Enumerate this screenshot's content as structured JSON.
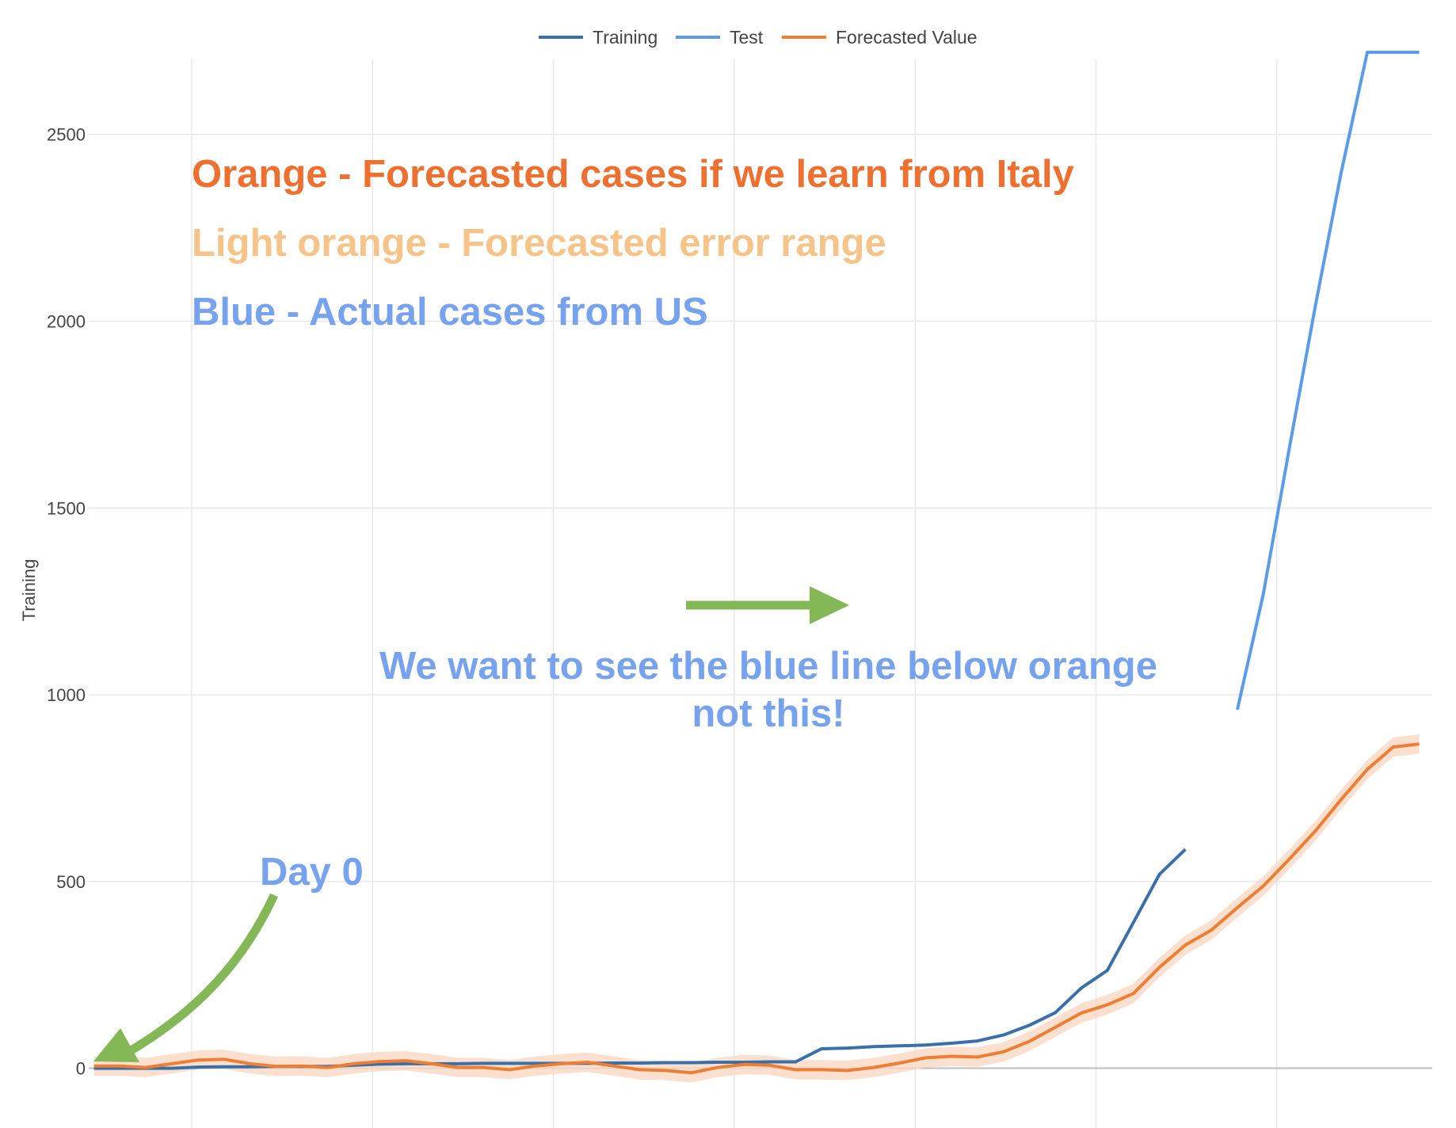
{
  "chart_data": {
    "type": "line",
    "title": "",
    "xlabel": "",
    "ylabel": "Training",
    "ylim": [
      -160,
      2860
    ],
    "yticks": [
      0,
      500,
      1000,
      1500,
      2000,
      2500
    ],
    "grid": true,
    "legend_position": "top-center",
    "legend": [
      "Training",
      "Test",
      "Forecasted Value"
    ],
    "x_index_range": [
      -0.2,
      51.5
    ],
    "series": [
      {
        "name": "Training",
        "color": "#3a6fa8",
        "x": [
          0,
          1,
          2,
          3,
          4,
          5,
          6,
          7,
          8,
          9,
          10,
          11,
          12,
          13,
          14,
          15,
          16,
          17,
          18,
          19,
          20,
          21,
          22,
          23,
          24,
          25,
          26,
          27,
          28,
          29,
          30,
          31,
          32,
          33,
          34,
          35,
          36,
          37,
          38,
          39,
          40,
          41,
          42,
          43,
          44,
          45,
          46,
          47,
          48,
          49,
          50,
          51
        ],
        "values": [
          0,
          0,
          0,
          0,
          3,
          4,
          4,
          5,
          5,
          5,
          8,
          11,
          12,
          12,
          12,
          13,
          13,
          13,
          13,
          13,
          14,
          14,
          15,
          15,
          16,
          16,
          17,
          17,
          52,
          54,
          58,
          60,
          62,
          67,
          73,
          89,
          115,
          149,
          215,
          262,
          390,
          519,
          586,
          null,
          null,
          null,
          null,
          null,
          null,
          null,
          null,
          null
        ]
      },
      {
        "name": "Test",
        "color": "#5b9be8",
        "x": [
          44,
          45,
          46,
          47,
          48,
          49,
          50,
          51
        ],
        "values": [
          960,
          1270,
          1660,
          2040,
          2400,
          2720,
          2720,
          2720
        ]
      },
      {
        "name": "Forecasted Value",
        "color": "#ee7e33",
        "band_color": "#fad8c3",
        "x": [
          0,
          1,
          2,
          3,
          4,
          5,
          6,
          7,
          8,
          9,
          10,
          11,
          12,
          13,
          14,
          15,
          16,
          17,
          18,
          19,
          20,
          21,
          22,
          23,
          24,
          25,
          26,
          27,
          28,
          29,
          30,
          31,
          32,
          33,
          34,
          35,
          36,
          37,
          38,
          39,
          40,
          41,
          42,
          43,
          44,
          45,
          46,
          47,
          48,
          49,
          50,
          51
        ],
        "values": [
          6,
          6,
          2,
          12,
          22,
          24,
          12,
          5,
          6,
          2,
          12,
          18,
          20,
          12,
          2,
          2,
          -4,
          6,
          12,
          16,
          6,
          -4,
          -6,
          -12,
          2,
          10,
          8,
          -4,
          -4,
          -6,
          2,
          14,
          28,
          32,
          30,
          44,
          72,
          110,
          148,
          170,
          200,
          270,
          330,
          370,
          430,
          488,
          560,
          635,
          720,
          800,
          860,
          868
        ],
        "lower": [
          -20,
          -20,
          -24,
          -14,
          -4,
          -2,
          -14,
          -21,
          -20,
          -24,
          -14,
          -8,
          -6,
          -14,
          -24,
          -24,
          -30,
          -20,
          -14,
          -10,
          -20,
          -30,
          -32,
          -38,
          -24,
          -16,
          -18,
          -30,
          -30,
          -32,
          -24,
          -12,
          2,
          6,
          4,
          18,
          46,
          84,
          122,
          144,
          174,
          244,
          304,
          344,
          404,
          462,
          534,
          609,
          694,
          774,
          834,
          842
        ],
        "upper": [
          32,
          32,
          28,
          38,
          48,
          50,
          38,
          31,
          32,
          28,
          38,
          44,
          46,
          38,
          28,
          28,
          22,
          32,
          38,
          42,
          32,
          22,
          20,
          14,
          28,
          36,
          34,
          22,
          22,
          20,
          28,
          40,
          54,
          58,
          56,
          70,
          98,
          136,
          174,
          196,
          226,
          296,
          356,
          396,
          456,
          514,
          586,
          661,
          746,
          826,
          886,
          894
        ]
      }
    ]
  },
  "annotations": {
    "orange_text": "Orange - Forecasted cases if we learn from Italy",
    "orange_color": "#ee7030",
    "light_orange_text": "Light orange - Forecasted error range",
    "light_orange_color": "#f6c489",
    "blue_text": "Blue - Actual cases from US",
    "blue_color": "#77a2ee",
    "message_line1": "We want to see the blue line below orange",
    "message_line2": "not this!",
    "day0_text": "Day 0",
    "arrow_color": "#84b755"
  }
}
